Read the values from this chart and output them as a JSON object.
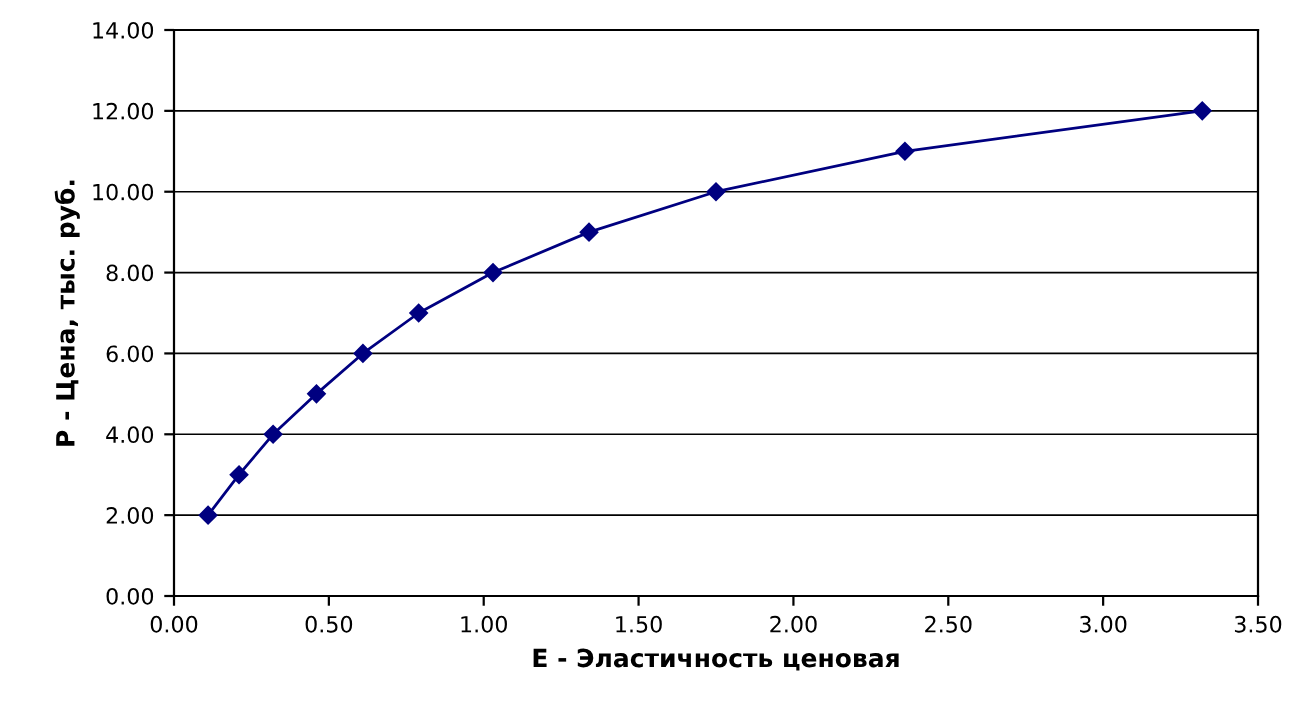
{
  "chart_data": {
    "type": "line",
    "xlabel": "E - Эластичность ценовая",
    "ylabel": "P - Цена, тыс. руб.",
    "x": [
      0.11,
      0.21,
      0.32,
      0.46,
      0.61,
      0.79,
      1.03,
      1.34,
      1.75,
      2.36,
      3.32
    ],
    "series": [
      {
        "color": "#000080",
        "values": [
          2,
          3,
          4,
          5,
          6,
          7,
          8,
          9,
          10,
          11,
          12
        ]
      }
    ],
    "xlim": [
      0,
      3.5
    ],
    "ylim": [
      0,
      14
    ],
    "xticks": [
      {
        "value": 0,
        "label": "0.00"
      },
      {
        "value": 0.5,
        "label": "0.50"
      },
      {
        "value": 1,
        "label": "1.00"
      },
      {
        "value": 1.5,
        "label": "1.50"
      },
      {
        "value": 2,
        "label": "2.00"
      },
      {
        "value": 2.5,
        "label": "2.50"
      },
      {
        "value": 3,
        "label": "3.00"
      },
      {
        "value": 3.5,
        "label": "3.50"
      }
    ],
    "yticks": [
      {
        "value": 0,
        "label": "0.00"
      },
      {
        "value": 2,
        "label": "2.00"
      },
      {
        "value": 4,
        "label": "4.00"
      },
      {
        "value": 6,
        "label": "6.00"
      },
      {
        "value": 8,
        "label": "8.00"
      },
      {
        "value": 10,
        "label": "10.00"
      },
      {
        "value": 12,
        "label": "12.00"
      },
      {
        "value": 14,
        "label": "14.00"
      }
    ],
    "grid": "y",
    "marker": "diamond",
    "line_style": "solid",
    "legend": false
  }
}
